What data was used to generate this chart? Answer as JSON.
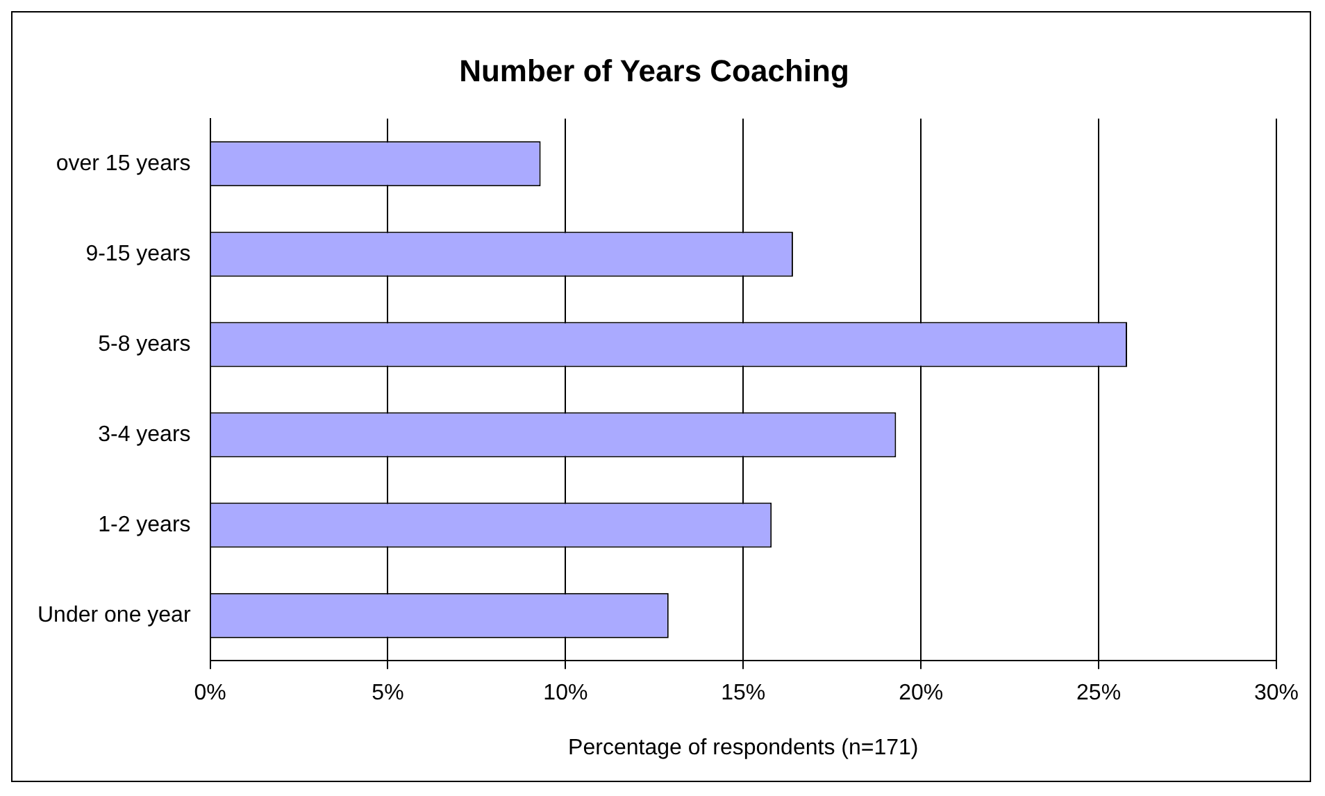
{
  "chart_data": {
    "type": "bar",
    "orientation": "horizontal",
    "title": "Number of Years Coaching",
    "xlabel": "Percentage of respondents (n=171)",
    "categories": [
      "over 15 years",
      "9-15 years",
      "5-8 years",
      "3-4 years",
      "1-2 years",
      "Under one year"
    ],
    "values": [
      9.3,
      16.4,
      25.8,
      19.3,
      15.8,
      12.9
    ],
    "color": "#aaaaff",
    "xlim": [
      0,
      30
    ],
    "xticks": [
      {
        "value": 0,
        "label": "0%"
      },
      {
        "value": 5,
        "label": "5%"
      },
      {
        "value": 10,
        "label": "10%"
      },
      {
        "value": 15,
        "label": "15%"
      },
      {
        "value": 20,
        "label": "20%"
      },
      {
        "value": 25,
        "label": "25%"
      },
      {
        "value": 30,
        "label": "30%"
      }
    ],
    "grid": "x",
    "legend": false
  }
}
